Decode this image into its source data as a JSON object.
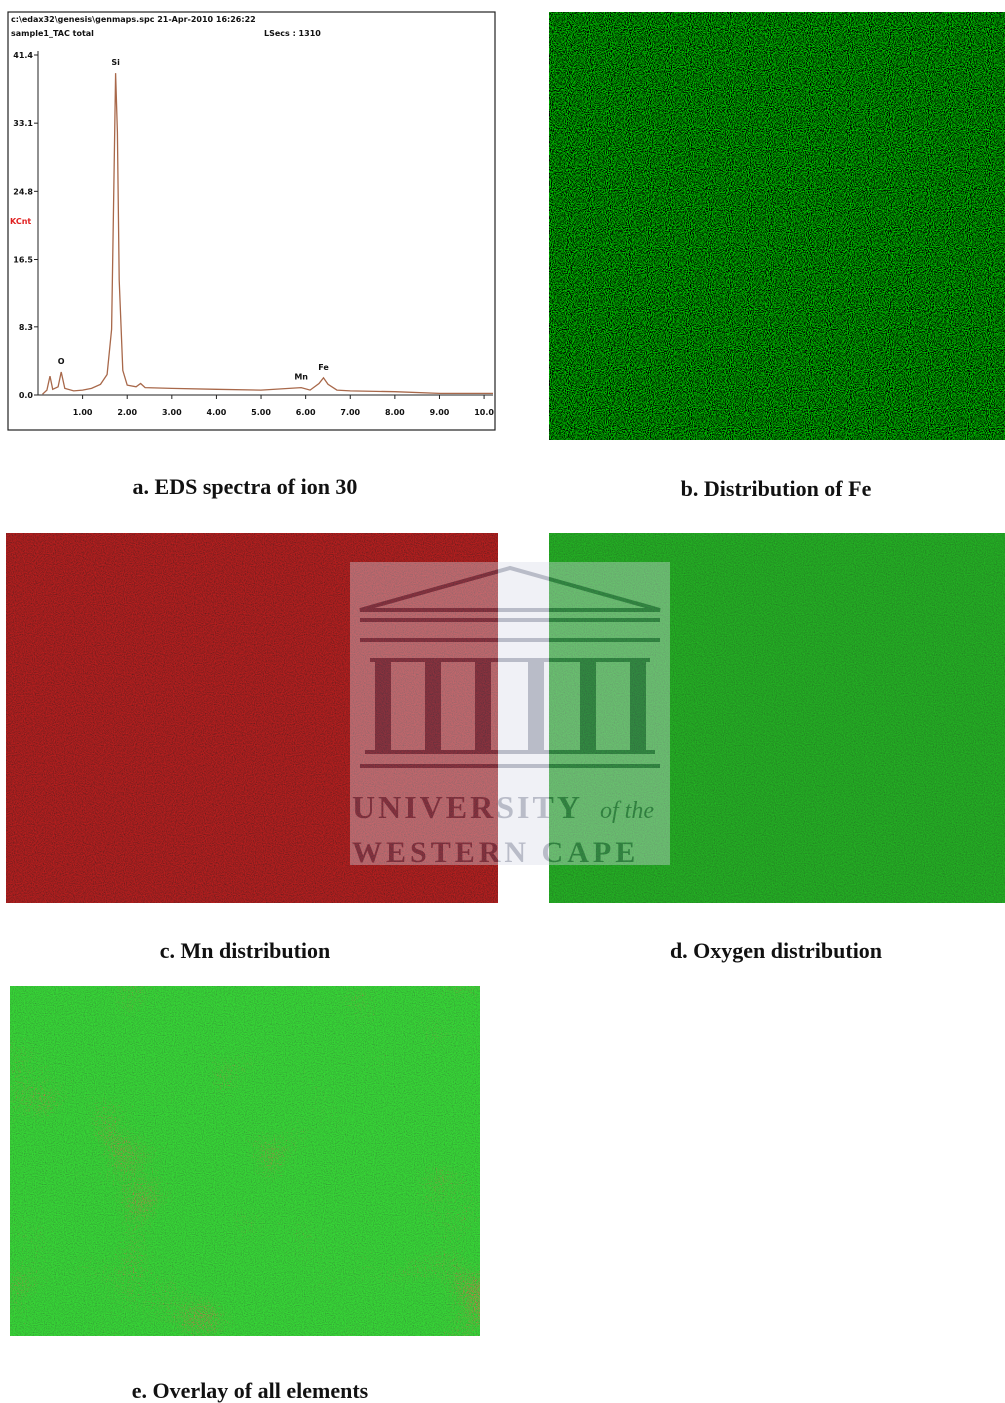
{
  "chart_data": {
    "type": "line",
    "header": [
      "c:\\edax32\\genesis\\genmaps.spc  21-Apr-2010 16:26:22",
      "sample1_TAC total"
    ],
    "lsecs": "LSecs : 1310",
    "ylabel": "KCnt",
    "x": [
      0.1,
      0.2,
      0.27,
      0.33,
      0.45,
      0.52,
      0.6,
      0.8,
      1.0,
      1.2,
      1.4,
      1.55,
      1.65,
      1.7,
      1.74,
      1.78,
      1.82,
      1.9,
      2.0,
      2.2,
      2.3,
      2.4,
      3.0,
      4.0,
      5.0,
      5.9,
      6.1,
      6.3,
      6.4,
      6.5,
      6.7,
      7.0,
      8.0,
      9.0,
      10.2
    ],
    "series": [
      {
        "color": "#a8684a",
        "values": [
          0.1,
          0.6,
          2.3,
          0.7,
          1.0,
          2.8,
          0.8,
          0.5,
          0.6,
          0.8,
          1.3,
          2.5,
          8,
          25,
          39.2,
          32,
          14,
          3,
          1.2,
          1.0,
          1.4,
          0.9,
          0.8,
          0.7,
          0.6,
          0.9,
          0.6,
          1.4,
          2.1,
          1.3,
          0.6,
          0.5,
          0.4,
          0.2,
          0.2
        ]
      }
    ],
    "peak_labels": [
      {
        "text": "O",
        "x": 0.52
      },
      {
        "text": "Si",
        "x": 1.74
      },
      {
        "text": "Mn",
        "x": 5.9
      },
      {
        "text": "Fe",
        "x": 6.4
      }
    ],
    "xlim": [
      0,
      10.2
    ],
    "ylim": [
      0,
      41.4
    ],
    "xticks": [
      {
        "value": 1,
        "label": "1.00"
      },
      {
        "value": 2,
        "label": "2.00"
      },
      {
        "value": 3,
        "label": "3.00"
      },
      {
        "value": 4,
        "label": "4.00"
      },
      {
        "value": 5,
        "label": "5.00"
      },
      {
        "value": 6,
        "label": "6.00"
      },
      {
        "value": 7,
        "label": "7.00"
      },
      {
        "value": 8,
        "label": "8.00"
      },
      {
        "value": 9,
        "label": "9.00"
      },
      {
        "value": 10,
        "label": "10.0"
      }
    ],
    "yticks": [
      {
        "value": 0,
        "label": "0.0"
      },
      8.3,
      16.5,
      24.8,
      33.1,
      41.4
    ]
  },
  "panels": [
    {
      "caption": "a. EDS spectra of ion 30"
    },
    {
      "caption": "b. Distribution of Fe"
    },
    {
      "caption": "c. Mn distribution"
    },
    {
      "caption": "d. Oxygen distribution"
    },
    {
      "caption": "e. Overlay of all elements"
    }
  ],
  "watermark": {
    "name": "UNIVERSITY",
    "of": "of the",
    "place": "WESTERN CAPE"
  }
}
